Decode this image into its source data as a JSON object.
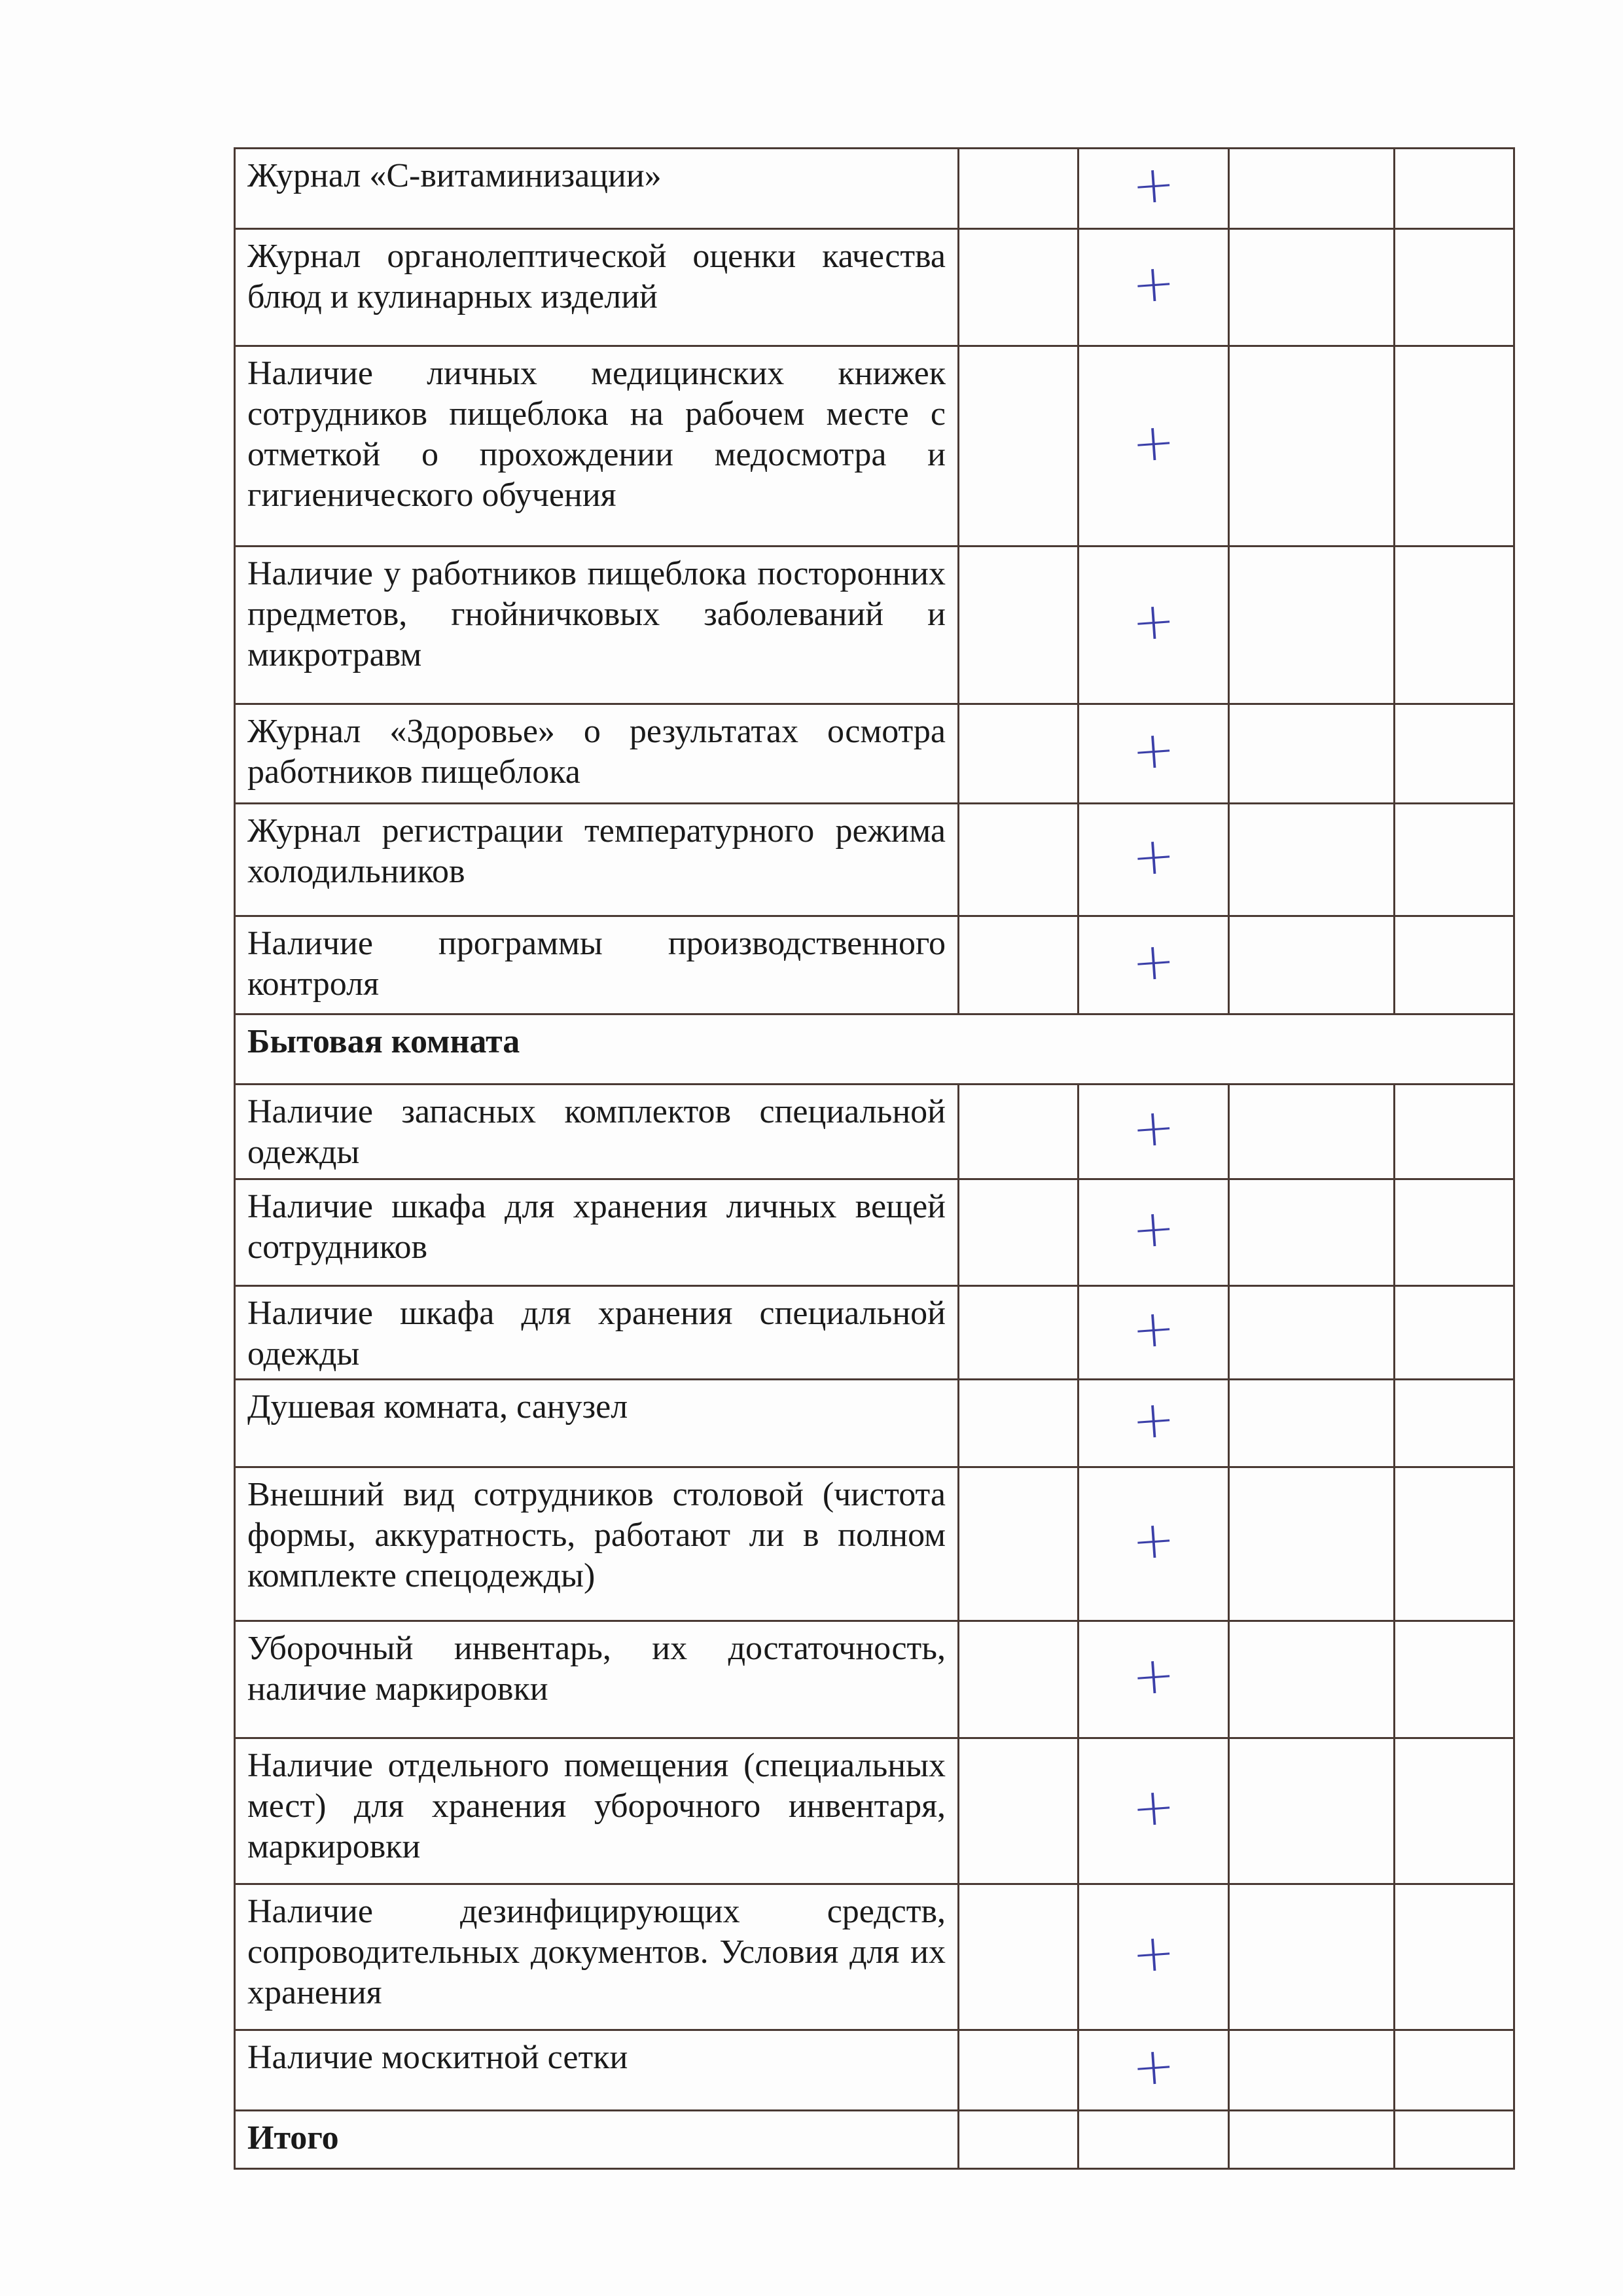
{
  "marker_color": "#3b3fa8",
  "rows": [
    {
      "type": "item",
      "text": "Журнал «С-витаминизации»",
      "marks": [
        "",
        "+",
        "",
        ""
      ]
    },
    {
      "type": "item",
      "text": "Журнал органолептической оценки качества блюд и кулинарных изделий",
      "marks": [
        "",
        "+",
        "",
        ""
      ]
    },
    {
      "type": "item",
      "text": "Наличие личных медицинских книжек сотрудников пищеблока на рабочем месте с отметкой о прохождении медосмотра и гигиенического обучения",
      "marks": [
        "",
        "+",
        "",
        ""
      ]
    },
    {
      "type": "item",
      "text": "Наличие у работников пищеблока посторонних предметов, гнойничковых заболеваний и микротравм",
      "marks": [
        "",
        "+",
        "",
        ""
      ]
    },
    {
      "type": "item",
      "text": "Журнал «Здоровье» о результатах осмотра работников пищеблока",
      "marks": [
        "",
        "+",
        "",
        ""
      ]
    },
    {
      "type": "item",
      "text": "Журнал регистрации температурного режима холодильников",
      "marks": [
        "",
        "+",
        "",
        ""
      ]
    },
    {
      "type": "item",
      "text": "Наличие программы производственного контроля",
      "marks": [
        "",
        "+",
        "",
        ""
      ]
    },
    {
      "type": "section",
      "text": "Бытовая комната"
    },
    {
      "type": "item",
      "text": "Наличие запасных комплектов специальной одежды",
      "marks": [
        "",
        "+",
        "",
        ""
      ]
    },
    {
      "type": "item",
      "text": "Наличие шкафа для хранения личных вещей сотрудников",
      "marks": [
        "",
        "+",
        "",
        ""
      ]
    },
    {
      "type": "item",
      "text": "Наличие шкафа для хранения специальной одежды",
      "marks": [
        "",
        "+",
        "",
        ""
      ]
    },
    {
      "type": "item",
      "text": "Душевая комната, санузел",
      "marks": [
        "",
        "+",
        "",
        ""
      ]
    },
    {
      "type": "item",
      "text": "Внешний вид сотрудников столовой (чистота формы, аккуратность, работают ли в полном комплекте спецодежды)",
      "marks": [
        "",
        "+",
        "",
        ""
      ]
    },
    {
      "type": "item",
      "text": "Уборочный инвентарь, их достаточность, наличие маркировки",
      "marks": [
        "",
        "+",
        "",
        ""
      ]
    },
    {
      "type": "item",
      "text": "Наличие отдельного помещения (специальных мест) для хранения уборочного инвентаря, маркировки",
      "marks": [
        "",
        "+",
        "",
        ""
      ]
    },
    {
      "type": "item",
      "text": "Наличие дезинфицирующих средств, сопроводительных документов. Условия для их хранения",
      "marks": [
        "",
        "+",
        "",
        ""
      ]
    },
    {
      "type": "item",
      "text": "Наличие москитной сетки",
      "marks": [
        "",
        "+",
        "",
        ""
      ]
    },
    {
      "type": "total",
      "text": "Итого",
      "marks": [
        "",
        "",
        "",
        ""
      ]
    }
  ]
}
